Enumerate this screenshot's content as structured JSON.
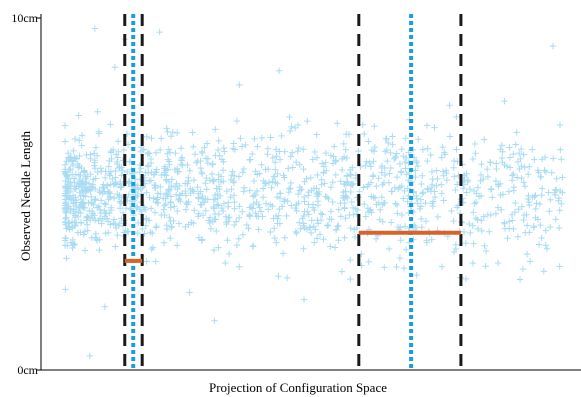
{
  "chart_data": {
    "type": "scatter",
    "title": "",
    "xlabel": "Projection of Configuration Space",
    "ylabel": "Observed Needle Length",
    "ylim": [
      0,
      10
    ],
    "xlim": [
      0,
      1
    ],
    "yticks": [
      {
        "value": 0,
        "label": "0cm"
      },
      {
        "value": 10,
        "label": "10cm"
      }
    ],
    "grid": false,
    "legend": "none",
    "marker": "plus",
    "colors": {
      "points": "#a9dcf4",
      "interval_bounds": "#1a1a1a",
      "interval_center": "#1a9fdc",
      "interval_width_bar": "#d9622b"
    },
    "cloud": {
      "count": 1400,
      "x_range": [
        0.0,
        1.0
      ],
      "y_center": 4.9,
      "y_spread_left": 0.75,
      "y_spread_right": 0.95,
      "outliers": [
        {
          "x": 0.06,
          "y": 9.7
        },
        {
          "x": 0.12,
          "y": 9.4
        },
        {
          "x": 0.1,
          "y": 8.6
        },
        {
          "x": 0.19,
          "y": 9.6
        },
        {
          "x": 0.98,
          "y": 9.2
        },
        {
          "x": 0.43,
          "y": 8.5
        },
        {
          "x": 0.35,
          "y": 8.1
        },
        {
          "x": 0.05,
          "y": 0.4
        },
        {
          "x": 0.08,
          "y": 1.8
        },
        {
          "x": 0.3,
          "y": 1.4
        },
        {
          "x": 0.25,
          "y": 2.2
        },
        {
          "x": 0.48,
          "y": 2.0
        }
      ]
    },
    "intervals": [
      {
        "lower": 0.12,
        "center": 0.137,
        "upper": 0.155,
        "bar_y": 3.1
      },
      {
        "lower": 0.59,
        "center": 0.695,
        "upper": 0.795,
        "bar_y": 3.9
      }
    ]
  }
}
